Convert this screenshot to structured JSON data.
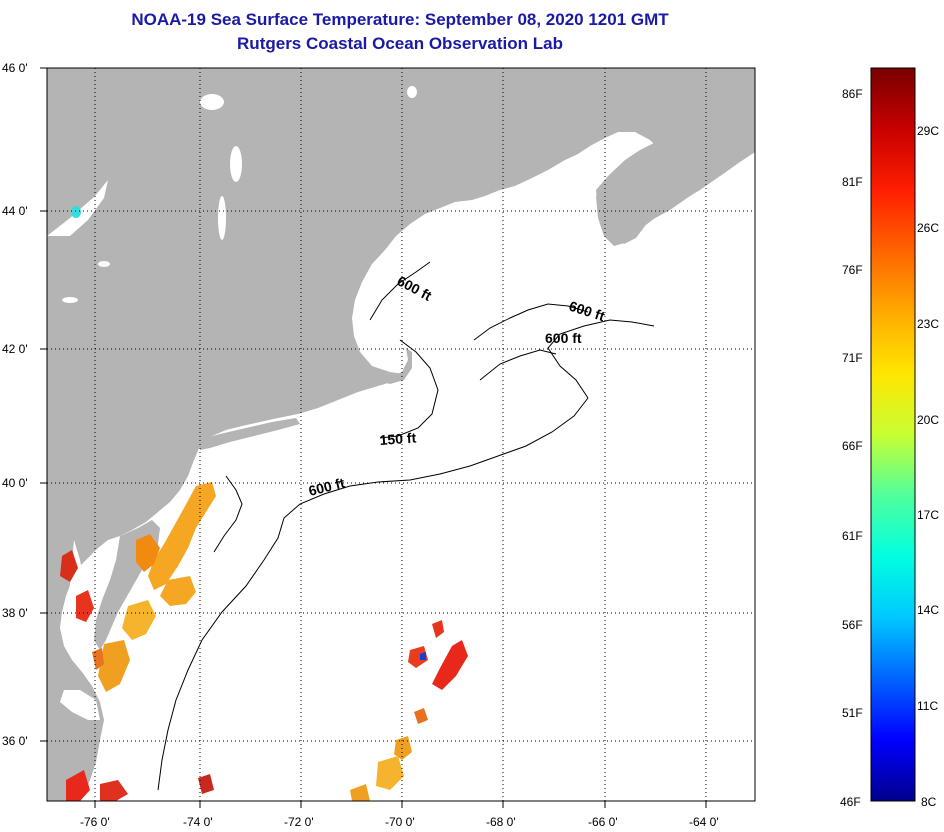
{
  "header": {
    "title": "NOAA-19 Sea Surface Temperature:  September 08, 2020 1201 GMT",
    "subtitle": "Rutgers Coastal Ocean Observation Lab"
  },
  "map": {
    "lat_labels": [
      "46 0'",
      "44 0'",
      "42 0'",
      "40 0'",
      "38 0'",
      "36 0'"
    ],
    "lon_labels": [
      "-76 0'",
      "-74 0'",
      "-72 0'",
      "-70 0'",
      "-68 0'",
      "-66 0'",
      "-64 0'"
    ],
    "contour_labels": [
      "600 ft",
      "600 ft",
      "600 ft",
      "150 ft",
      "600 ft"
    ],
    "colors": {
      "land": "#b4b4b4",
      "ocean": "#ffffff",
      "grid": "#000000"
    }
  },
  "colorbar": {
    "fahrenheit": [
      "86F",
      "81F",
      "76F",
      "71F",
      "66F",
      "61F",
      "56F",
      "51F",
      "46F"
    ],
    "celsius": [
      "29C",
      "26C",
      "23C",
      "20C",
      "17C",
      "14C",
      "11C",
      "8C"
    ],
    "colors": [
      "#00008c",
      "#0000ff",
      "#0064ff",
      "#00c8ff",
      "#00ffe0",
      "#50ff9c",
      "#c8ff32",
      "#ffe600",
      "#ffaa00",
      "#ff6400",
      "#ff1e00",
      "#c80000",
      "#780000"
    ]
  }
}
